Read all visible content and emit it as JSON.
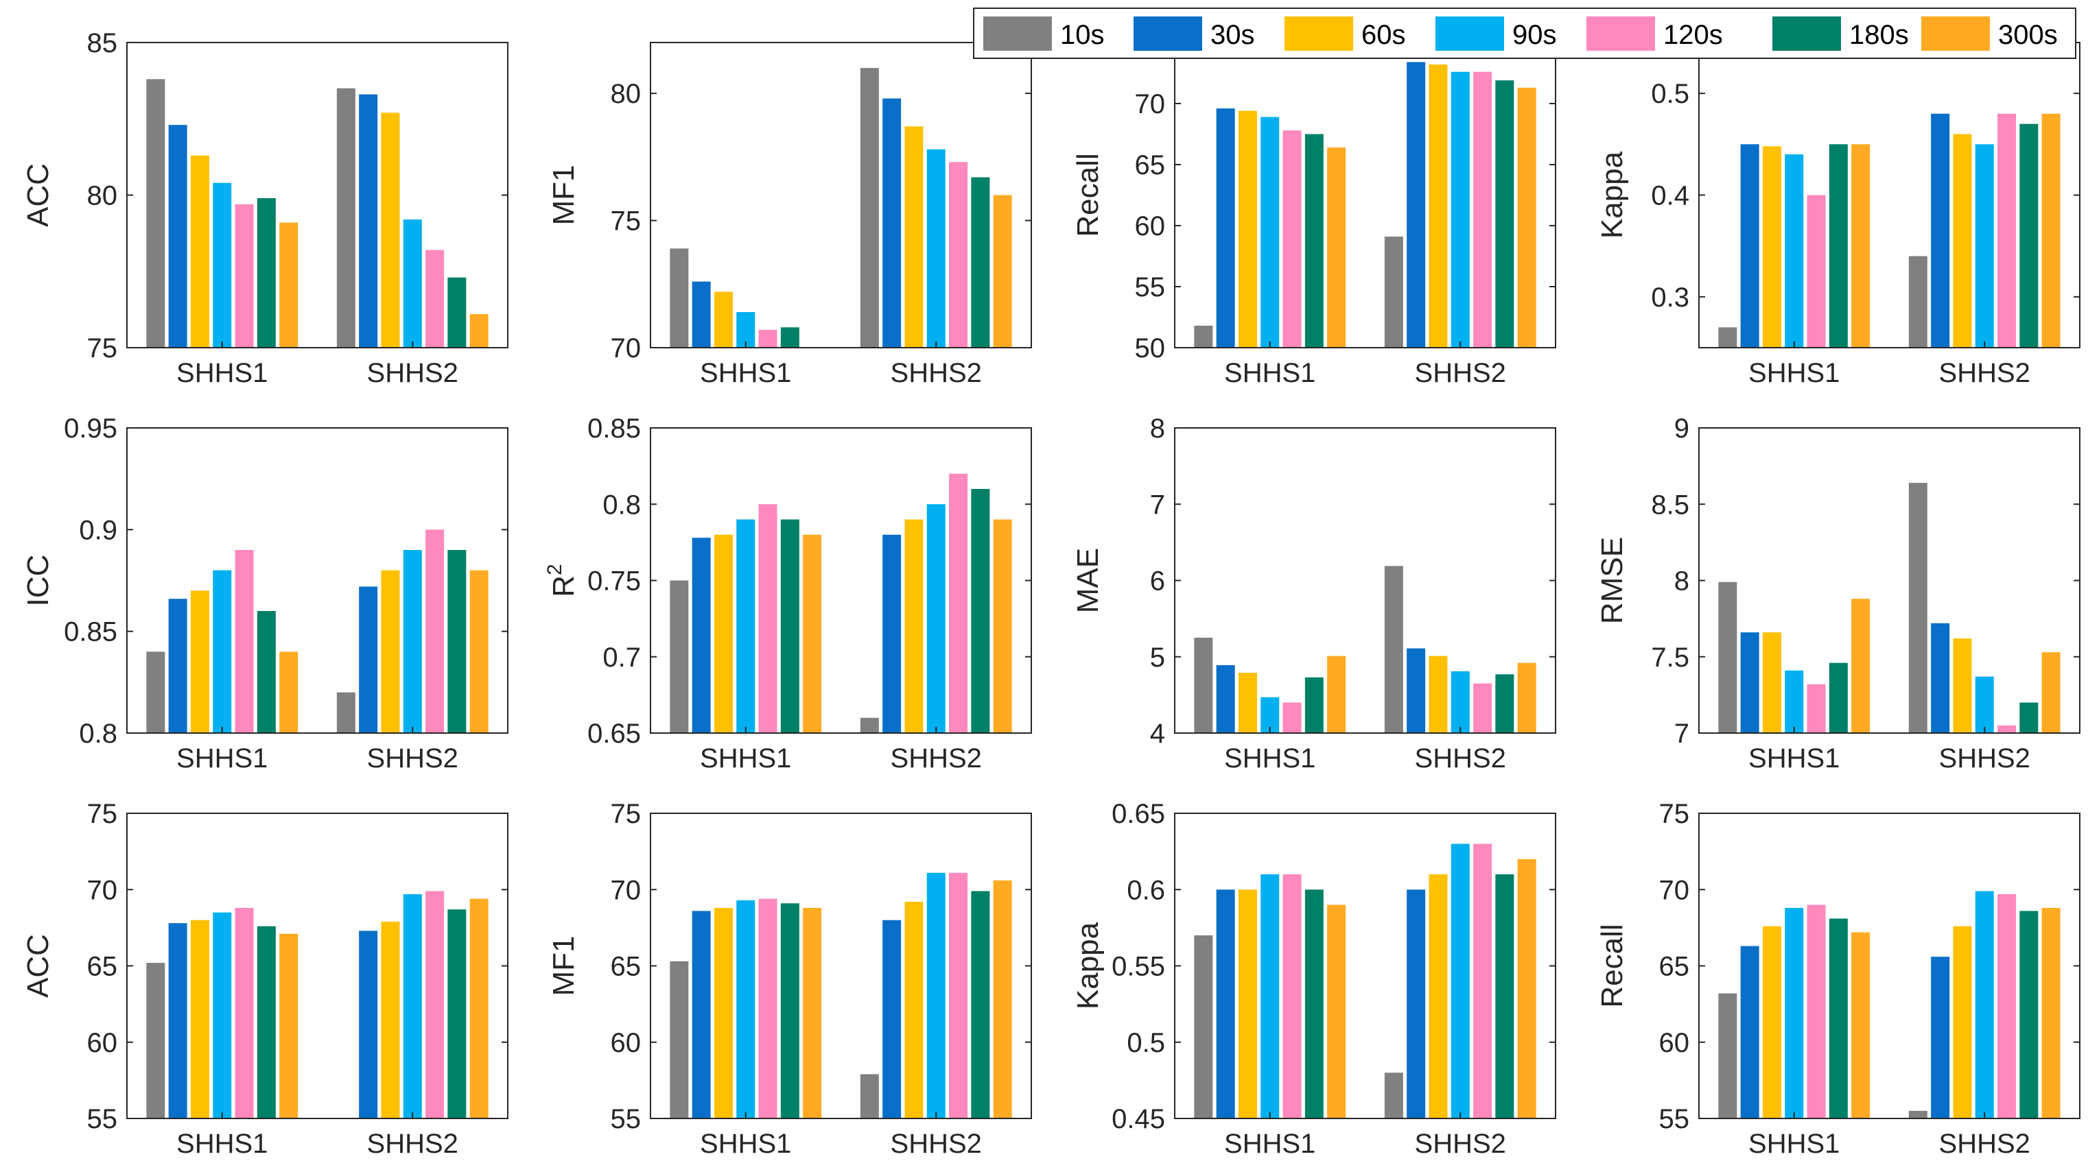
{
  "legend": [
    {
      "label": "10s",
      "color": "#808080"
    },
    {
      "label": "30s",
      "color": "#0A6FC8"
    },
    {
      "label": "60s",
      "color": "#FFC000"
    },
    {
      "label": "90s",
      "color": "#00B0F0"
    },
    {
      "label": "120s",
      "color": "#FF88BC"
    },
    {
      "label": "180s",
      "color": "#008066"
    },
    {
      "label": "300s",
      "color": "#FFAA22"
    }
  ],
  "chart_data": [
    {
      "type": "bar",
      "ylabel": "ACC",
      "ylabel_sup": "",
      "categories": [
        "SHHS1",
        "SHHS2"
      ],
      "ylim": [
        75,
        85
      ],
      "yticks": [
        "75",
        "80",
        "85"
      ],
      "series": [
        {
          "name": "10s",
          "values": [
            83.8,
            83.5
          ]
        },
        {
          "name": "30s",
          "values": [
            82.3,
            83.3
          ]
        },
        {
          "name": "60s",
          "values": [
            81.3,
            82.7
          ]
        },
        {
          "name": "90s",
          "values": [
            80.4,
            79.2
          ]
        },
        {
          "name": "120s",
          "values": [
            79.7,
            78.2
          ]
        },
        {
          "name": "180s",
          "values": [
            79.9,
            77.3
          ]
        },
        {
          "name": "300s",
          "values": [
            79.1,
            76.1
          ]
        }
      ]
    },
    {
      "type": "bar",
      "ylabel": "MF1",
      "ylabel_sup": "",
      "categories": [
        "SHHS1",
        "SHHS2"
      ],
      "ylim": [
        70,
        82
      ],
      "yticks": [
        "70",
        "75",
        "80"
      ],
      "series": [
        {
          "name": "10s",
          "values": [
            73.9,
            81.0
          ]
        },
        {
          "name": "30s",
          "values": [
            72.6,
            79.8
          ]
        },
        {
          "name": "60s",
          "values": [
            72.2,
            78.7
          ]
        },
        {
          "name": "90s",
          "values": [
            71.4,
            77.8
          ]
        },
        {
          "name": "120s",
          "values": [
            70.7,
            77.3
          ]
        },
        {
          "name": "180s",
          "values": [
            70.8,
            76.7
          ]
        },
        {
          "name": "300s",
          "values": [
            70.0,
            76.0
          ]
        }
      ]
    },
    {
      "type": "bar",
      "ylabel": "Recall",
      "ylabel_sup": "",
      "categories": [
        "SHHS1",
        "SHHS2"
      ],
      "ylim": [
        50,
        75
      ],
      "yticks": [
        "50",
        "55",
        "60",
        "65",
        "70"
      ],
      "series": [
        {
          "name": "10s",
          "values": [
            51.8,
            59.1
          ]
        },
        {
          "name": "30s",
          "values": [
            69.6,
            73.4
          ]
        },
        {
          "name": "60s",
          "values": [
            69.4,
            73.2
          ]
        },
        {
          "name": "90s",
          "values": [
            68.9,
            72.6
          ]
        },
        {
          "name": "120s",
          "values": [
            67.8,
            72.6
          ]
        },
        {
          "name": "180s",
          "values": [
            67.5,
            71.9
          ]
        },
        {
          "name": "300s",
          "values": [
            66.4,
            71.3
          ]
        }
      ]
    },
    {
      "type": "bar",
      "ylabel": "Kappa",
      "ylabel_sup": "",
      "categories": [
        "SHHS1",
        "SHHS2"
      ],
      "ylim": [
        0.25,
        0.55
      ],
      "yticks": [
        "0.3",
        "0.4",
        "0.5"
      ],
      "series": [
        {
          "name": "10s",
          "values": [
            0.27,
            0.34
          ]
        },
        {
          "name": "30s",
          "values": [
            0.45,
            0.48
          ]
        },
        {
          "name": "60s",
          "values": [
            0.448,
            0.46
          ]
        },
        {
          "name": "90s",
          "values": [
            0.44,
            0.45
          ]
        },
        {
          "name": "120s",
          "values": [
            0.4,
            0.48
          ]
        },
        {
          "name": "180s",
          "values": [
            0.45,
            0.47
          ]
        },
        {
          "name": "300s",
          "values": [
            0.45,
            0.48
          ]
        }
      ]
    },
    {
      "type": "bar",
      "ylabel": "ICC",
      "ylabel_sup": "",
      "categories": [
        "SHHS1",
        "SHHS2"
      ],
      "ylim": [
        0.8,
        0.95
      ],
      "yticks": [
        "0.8",
        "0.85",
        "0.9",
        "0.95"
      ],
      "series": [
        {
          "name": "10s",
          "values": [
            0.84,
            0.82
          ]
        },
        {
          "name": "30s",
          "values": [
            0.866,
            0.872
          ]
        },
        {
          "name": "60s",
          "values": [
            0.87,
            0.88
          ]
        },
        {
          "name": "90s",
          "values": [
            0.88,
            0.89
          ]
        },
        {
          "name": "120s",
          "values": [
            0.89,
            0.9
          ]
        },
        {
          "name": "180s",
          "values": [
            0.86,
            0.89
          ]
        },
        {
          "name": "300s",
          "values": [
            0.84,
            0.88
          ]
        }
      ]
    },
    {
      "type": "bar",
      "ylabel": "R",
      "ylabel_sup": "2",
      "categories": [
        "SHHS1",
        "SHHS2"
      ],
      "ylim": [
        0.65,
        0.85
      ],
      "yticks": [
        "0.65",
        "0.7",
        "0.75",
        "0.8",
        "0.85"
      ],
      "series": [
        {
          "name": "10s",
          "values": [
            0.75,
            0.66
          ]
        },
        {
          "name": "30s",
          "values": [
            0.778,
            0.78
          ]
        },
        {
          "name": "60s",
          "values": [
            0.78,
            0.79
          ]
        },
        {
          "name": "90s",
          "values": [
            0.79,
            0.8
          ]
        },
        {
          "name": "120s",
          "values": [
            0.8,
            0.82
          ]
        },
        {
          "name": "180s",
          "values": [
            0.79,
            0.81
          ]
        },
        {
          "name": "300s",
          "values": [
            0.78,
            0.79
          ]
        }
      ]
    },
    {
      "type": "bar",
      "ylabel": "MAE",
      "ylabel_sup": "",
      "categories": [
        "SHHS1",
        "SHHS2"
      ],
      "ylim": [
        4,
        8
      ],
      "yticks": [
        "4",
        "5",
        "6",
        "7",
        "8"
      ],
      "series": [
        {
          "name": "10s",
          "values": [
            5.25,
            6.19
          ]
        },
        {
          "name": "30s",
          "values": [
            4.89,
            5.11
          ]
        },
        {
          "name": "60s",
          "values": [
            4.79,
            5.01
          ]
        },
        {
          "name": "90s",
          "values": [
            4.47,
            4.81
          ]
        },
        {
          "name": "120s",
          "values": [
            4.4,
            4.65
          ]
        },
        {
          "name": "180s",
          "values": [
            4.73,
            4.77
          ]
        },
        {
          "name": "300s",
          "values": [
            5.01,
            4.92
          ]
        }
      ]
    },
    {
      "type": "bar",
      "ylabel": "RMSE",
      "ylabel_sup": "",
      "categories": [
        "SHHS1",
        "SHHS2"
      ],
      "ylim": [
        7,
        9
      ],
      "yticks": [
        "7",
        "7.5",
        "8",
        "8.5",
        "9"
      ],
      "series": [
        {
          "name": "10s",
          "values": [
            7.99,
            8.64
          ]
        },
        {
          "name": "30s",
          "values": [
            7.66,
            7.72
          ]
        },
        {
          "name": "60s",
          "values": [
            7.66,
            7.62
          ]
        },
        {
          "name": "90s",
          "values": [
            7.41,
            7.37
          ]
        },
        {
          "name": "120s",
          "values": [
            7.32,
            7.05
          ]
        },
        {
          "name": "180s",
          "values": [
            7.46,
            7.2
          ]
        },
        {
          "name": "300s",
          "values": [
            7.88,
            7.53
          ]
        }
      ]
    },
    {
      "type": "bar",
      "ylabel": "ACC",
      "ylabel_sup": "",
      "categories": [
        "SHHS1",
        "SHHS2"
      ],
      "ylim": [
        55,
        75
      ],
      "yticks": [
        "55",
        "60",
        "65",
        "70",
        "75"
      ],
      "series": [
        {
          "name": "10s",
          "values": [
            65.2,
            55.0
          ]
        },
        {
          "name": "30s",
          "values": [
            67.8,
            67.3
          ]
        },
        {
          "name": "60s",
          "values": [
            68.0,
            67.9
          ]
        },
        {
          "name": "90s",
          "values": [
            68.5,
            69.7
          ]
        },
        {
          "name": "120s",
          "values": [
            68.8,
            69.9
          ]
        },
        {
          "name": "180s",
          "values": [
            67.6,
            68.7
          ]
        },
        {
          "name": "300s",
          "values": [
            67.1,
            69.4
          ]
        }
      ]
    },
    {
      "type": "bar",
      "ylabel": "MF1",
      "ylabel_sup": "",
      "categories": [
        "SHHS1",
        "SHHS2"
      ],
      "ylim": [
        55,
        75
      ],
      "yticks": [
        "55",
        "60",
        "65",
        "70",
        "75"
      ],
      "series": [
        {
          "name": "10s",
          "values": [
            65.3,
            57.9
          ]
        },
        {
          "name": "30s",
          "values": [
            68.6,
            68.0
          ]
        },
        {
          "name": "60s",
          "values": [
            68.8,
            69.2
          ]
        },
        {
          "name": "90s",
          "values": [
            69.3,
            71.1
          ]
        },
        {
          "name": "120s",
          "values": [
            69.4,
            71.1
          ]
        },
        {
          "name": "180s",
          "values": [
            69.1,
            69.9
          ]
        },
        {
          "name": "300s",
          "values": [
            68.8,
            70.6
          ]
        }
      ]
    },
    {
      "type": "bar",
      "ylabel": "Kappa",
      "ylabel_sup": "",
      "categories": [
        "SHHS1",
        "SHHS2"
      ],
      "ylim": [
        0.45,
        0.65
      ],
      "yticks": [
        "0.45",
        "0.5",
        "0.55",
        "0.6",
        "0.65"
      ],
      "series": [
        {
          "name": "10s",
          "values": [
            0.57,
            0.48
          ]
        },
        {
          "name": "30s",
          "values": [
            0.6,
            0.6
          ]
        },
        {
          "name": "60s",
          "values": [
            0.6,
            0.61
          ]
        },
        {
          "name": "90s",
          "values": [
            0.61,
            0.63
          ]
        },
        {
          "name": "120s",
          "values": [
            0.61,
            0.63
          ]
        },
        {
          "name": "180s",
          "values": [
            0.6,
            0.61
          ]
        },
        {
          "name": "300s",
          "values": [
            0.59,
            0.62
          ]
        }
      ]
    },
    {
      "type": "bar",
      "ylabel": "Recall",
      "ylabel_sup": "",
      "categories": [
        "SHHS1",
        "SHHS2"
      ],
      "ylim": [
        55,
        75
      ],
      "yticks": [
        "55",
        "60",
        "65",
        "70",
        "75"
      ],
      "series": [
        {
          "name": "10s",
          "values": [
            63.2,
            55.5
          ]
        },
        {
          "name": "30s",
          "values": [
            66.3,
            65.6
          ]
        },
        {
          "name": "60s",
          "values": [
            67.6,
            67.6
          ]
        },
        {
          "name": "90s",
          "values": [
            68.8,
            69.9
          ]
        },
        {
          "name": "120s",
          "values": [
            69.0,
            69.7
          ]
        },
        {
          "name": "180s",
          "values": [
            68.1,
            68.6
          ]
        },
        {
          "name": "300s",
          "values": [
            67.2,
            68.8
          ]
        }
      ]
    }
  ]
}
